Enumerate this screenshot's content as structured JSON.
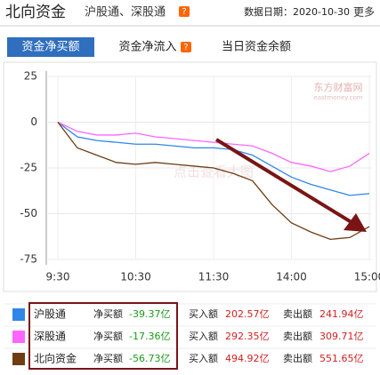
{
  "header": {
    "title": "北向资金",
    "subtitle": "沪股通、深股通",
    "help": "?",
    "date": "数据日期：2020-10-30",
    "more": "更多"
  },
  "tabs": [
    "资金净买额",
    "资金净流入",
    "当日资金余额"
  ],
  "watermark": {
    "logo": "东方财富网",
    "url": "eastmoney.com",
    "hint": "点击查看大图"
  },
  "chart_data": {
    "type": "line",
    "categories": [
      "9:30",
      null,
      null,
      null,
      "10:30",
      null,
      null,
      null,
      "11:30",
      null,
      null,
      null,
      "14:00",
      null,
      null,
      null,
      "15:00"
    ],
    "series": [
      {
        "name": "沪股通",
        "color": "#2f86e8",
        "values": [
          0,
          -8,
          -10,
          -11,
          -12,
          -12,
          -13,
          -14,
          -14,
          -15,
          -18,
          -24,
          -30,
          -34,
          -37,
          -40,
          -39
        ]
      },
      {
        "name": "深股通",
        "color": "#ff66ff",
        "values": [
          0,
          -5,
          -7,
          -7,
          -6,
          -8,
          -9,
          -10,
          -11,
          -12,
          -13,
          -17,
          -22,
          -24,
          -27,
          -24,
          -17
        ]
      },
      {
        "name": "北向资金",
        "color": "#6e3d12",
        "values": [
          0,
          -14,
          -18,
          -22,
          -23,
          -22,
          -23,
          -24,
          -25,
          -28,
          -32,
          -45,
          -55,
          -60,
          -64,
          -63,
          -57
        ]
      }
    ],
    "ylim": [
      -75,
      25
    ],
    "yticks": [
      25,
      0,
      -25,
      -50,
      -75
    ],
    "grid": true
  },
  "table": {
    "rows": [
      {
        "net_label": "净买额",
        "net": "-39.37亿",
        "buy_label": "买入额",
        "buy": "202.57亿",
        "sell_label": "卖出额",
        "sell": "241.94亿"
      },
      {
        "net_label": "净买额",
        "net": "-17.36亿",
        "buy_label": "买入额",
        "buy": "292.35亿",
        "sell_label": "卖出额",
        "sell": "309.71亿"
      },
      {
        "net_label": "净买额",
        "net": "-56.73亿",
        "buy_label": "买入额",
        "buy": "494.92亿",
        "sell_label": "卖出额",
        "sell": "551.65亿"
      }
    ]
  }
}
